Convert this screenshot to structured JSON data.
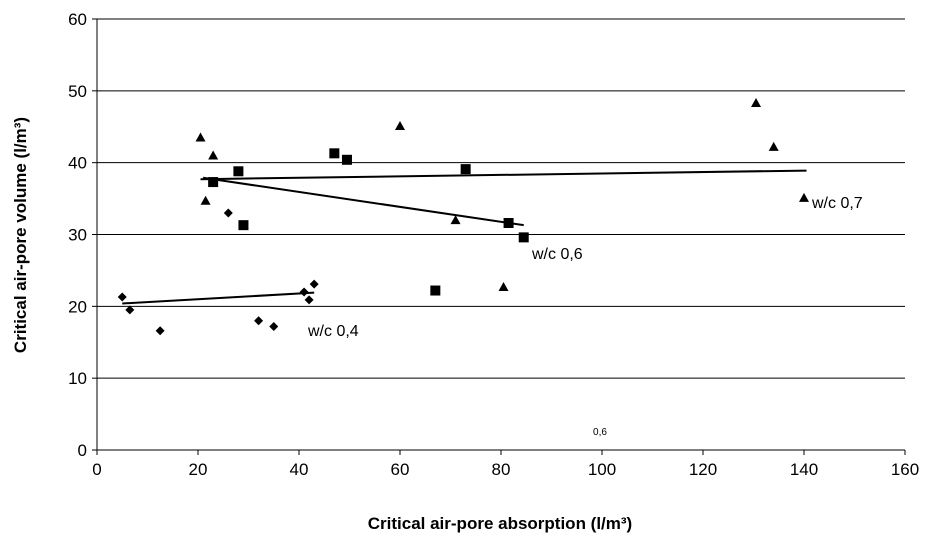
{
  "chart_data": {
    "type": "scatter",
    "xlabel": "Critical air-pore absorption (l/m³)",
    "ylabel": "Critical air-pore volume (l/m³)",
    "xlim": [
      0,
      160
    ],
    "ylim": [
      0,
      60
    ],
    "x_ticks": [
      0,
      20,
      40,
      60,
      80,
      100,
      120,
      140,
      160
    ],
    "y_ticks": [
      0,
      10,
      20,
      30,
      40,
      50,
      60
    ],
    "grid": "horizontal",
    "annotation": "0,6",
    "series": [
      {
        "name": "w/c 0,4",
        "marker": "diamond",
        "points": [
          [
            5,
            21.3
          ],
          [
            6.5,
            19.5
          ],
          [
            12.5,
            16.6
          ],
          [
            26,
            33
          ],
          [
            32,
            18
          ],
          [
            35,
            17.2
          ],
          [
            41,
            22
          ],
          [
            42,
            20.9
          ],
          [
            43,
            23.1
          ]
        ],
        "trendline": [
          [
            5,
            20.4
          ],
          [
            43,
            21.9
          ]
        ]
      },
      {
        "name": "w/c 0,6",
        "marker": "square",
        "points": [
          [
            23,
            37.3
          ],
          [
            28,
            38.8
          ],
          [
            29,
            31.3
          ],
          [
            47,
            41.3
          ],
          [
            49.5,
            40.4
          ],
          [
            67,
            22.2
          ],
          [
            73,
            39.1
          ],
          [
            81.5,
            31.6
          ],
          [
            84.5,
            29.6
          ]
        ],
        "trendline": [
          [
            21,
            37.9
          ],
          [
            84.5,
            31.3
          ]
        ]
      },
      {
        "name": "w/c 0,7",
        "marker": "triangle",
        "points": [
          [
            20.5,
            43.5
          ],
          [
            21.5,
            34.7
          ],
          [
            23,
            41
          ],
          [
            60,
            45.1
          ],
          [
            71,
            32
          ],
          [
            80.5,
            22.7
          ],
          [
            130.5,
            48.3
          ],
          [
            134,
            42.2
          ],
          [
            140,
            35.1
          ]
        ],
        "trendline": [
          [
            20.5,
            37.7
          ],
          [
            140.5,
            38.9
          ]
        ]
      }
    ]
  }
}
